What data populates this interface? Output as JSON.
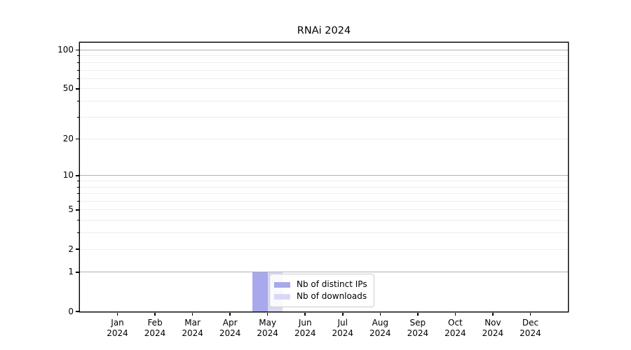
{
  "chart_data": {
    "type": "bar",
    "title": "RNAi 2024",
    "x_categories": [
      "Jan",
      "Feb",
      "Mar",
      "Apr",
      "May",
      "Jun",
      "Jul",
      "Aug",
      "Sep",
      "Oct",
      "Nov",
      "Dec"
    ],
    "x_year": "2024",
    "series": [
      {
        "name": "Nb of distinct IPs",
        "color": "#a8a8ec",
        "values": [
          0,
          0,
          0,
          0,
          1,
          0,
          0,
          0,
          0,
          0,
          0,
          0
        ]
      },
      {
        "name": "Nb of downloads",
        "color": "#d9d9f6",
        "values": [
          0,
          0,
          0,
          0,
          1,
          0,
          0,
          0,
          0,
          0,
          0,
          0
        ]
      }
    ],
    "yscale": "log1p",
    "ylim": [
      0,
      114
    ],
    "yticks_labeled": [
      0,
      1,
      2,
      5,
      10,
      20,
      50,
      100
    ],
    "ygrid_major": [
      1,
      10,
      100
    ],
    "ygrid_minor": [
      2,
      3,
      4,
      5,
      6,
      7,
      8,
      9,
      20,
      30,
      40,
      50,
      60,
      70,
      80,
      90
    ],
    "legend_position": "lower center",
    "colors": {
      "grid_major": "#b0b0b0",
      "grid_minor": "#ededed",
      "axis": "#000000",
      "legend_border": "#cccccc",
      "legend_bg": "#ffffff"
    }
  }
}
